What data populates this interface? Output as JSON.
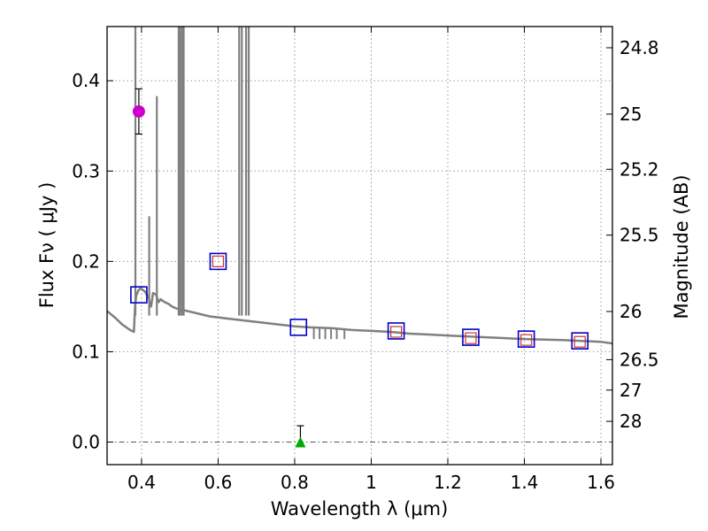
{
  "chart_data": {
    "type": "scatter",
    "xlabel": "Wavelength  λ (μm)",
    "ylabel": "Flux  Fν  ( μJy )",
    "y2label": "Magnitude (AB)",
    "xlim": [
      0.31,
      1.63
    ],
    "ylim": [
      -0.025,
      0.46
    ],
    "grid": true,
    "x_ticks": [
      "0.4",
      "0.6",
      "0.8",
      "1",
      "1.2",
      "1.4",
      "1.6"
    ],
    "y_ticks": [
      "0.0",
      "0.1",
      "0.2",
      "0.3",
      "0.4"
    ],
    "y2_ticks": [
      "24.8",
      "25",
      "25.2",
      "25.5",
      "26",
      "26.5",
      "27",
      "28"
    ],
    "colors": {
      "model": "#808080",
      "photometry": "#cc00cc",
      "upper_limit": "#00aa00",
      "model_box": "#0000cc",
      "data_box": "#cc3333"
    },
    "series": [
      {
        "name": "model spectrum",
        "kind": "line",
        "x": [
          0.31,
          0.33,
          0.35,
          0.37,
          0.38,
          0.383,
          0.386,
          0.389,
          0.392,
          0.397,
          0.402,
          0.41,
          0.418,
          0.425,
          0.43,
          0.438,
          0.445,
          0.45,
          0.46,
          0.47,
          0.48,
          0.49,
          0.5,
          0.52,
          0.54,
          0.56,
          0.58,
          0.6,
          0.62,
          0.64,
          0.66,
          0.68,
          0.7,
          0.72,
          0.74,
          0.76,
          0.8,
          0.84,
          0.9,
          0.95,
          1.0,
          1.05,
          1.1,
          1.15,
          1.2,
          1.3,
          1.4,
          1.5,
          1.55,
          1.6,
          1.63
        ],
        "y": [
          0.145,
          0.138,
          0.13,
          0.124,
          0.122,
          0.15,
          0.162,
          0.165,
          0.168,
          0.17,
          0.169,
          0.166,
          0.16,
          0.15,
          0.165,
          0.163,
          0.155,
          0.158,
          0.155,
          0.153,
          0.15,
          0.148,
          0.147,
          0.145,
          0.143,
          0.141,
          0.139,
          0.138,
          0.137,
          0.136,
          0.135,
          0.134,
          0.133,
          0.132,
          0.131,
          0.13,
          0.128,
          0.127,
          0.126,
          0.124,
          0.123,
          0.122,
          0.12,
          0.119,
          0.118,
          0.116,
          0.114,
          0.113,
          0.112,
          0.111,
          0.109
        ]
      },
      {
        "name": "emission lines",
        "kind": "spikes",
        "x": [
          0.384,
          0.42,
          0.44,
          0.497,
          0.501,
          0.506,
          0.51,
          0.655,
          0.662,
          0.673,
          0.68
        ],
        "y": [
          0.46,
          0.25,
          0.383,
          0.46,
          0.46,
          0.46,
          0.46,
          0.46,
          0.46,
          0.46,
          0.46
        ]
      },
      {
        "name": "model photometry",
        "kind": "open-square",
        "x": [
          0.393,
          0.6,
          0.81,
          1.065,
          1.26,
          1.405,
          1.545
        ],
        "y": [
          0.163,
          0.2,
          0.127,
          0.123,
          0.116,
          0.114,
          0.112
        ]
      },
      {
        "name": "observed photometry",
        "kind": "small-square",
        "x": [
          0.6,
          1.065,
          1.26,
          1.405,
          1.545
        ],
        "y": [
          0.2,
          0.122,
          0.115,
          0.113,
          0.111
        ]
      },
      {
        "name": "measurement",
        "kind": "circle",
        "x": [
          0.393
        ],
        "y": [
          0.366
        ],
        "yerr": [
          0.025
        ]
      },
      {
        "name": "upper limit",
        "kind": "triangle",
        "x": [
          0.815
        ],
        "y": [
          0.0
        ],
        "yerr_up": [
          0.018
        ]
      }
    ]
  }
}
